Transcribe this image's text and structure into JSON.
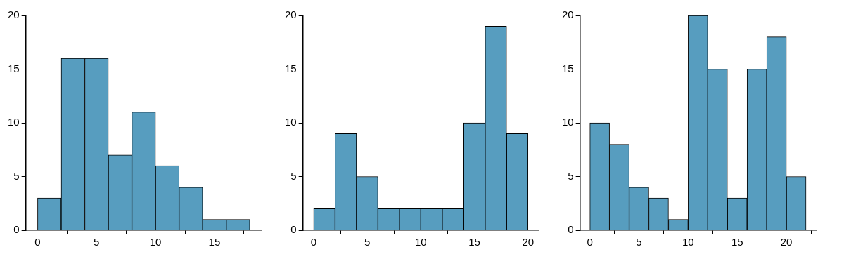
{
  "chart_data": [
    {
      "type": "histogram",
      "bins": [
        0,
        2,
        4,
        6,
        8,
        10,
        12,
        14,
        16,
        18
      ],
      "values": [
        3,
        16,
        16,
        7,
        11,
        6,
        4,
        1,
        1
      ],
      "color": "#579dbf",
      "xlim": [
        -1,
        19
      ],
      "xticks": [
        0,
        5,
        10,
        15
      ],
      "ylim": [
        0,
        20
      ],
      "yticks": [
        0,
        5,
        10,
        15,
        20
      ],
      "grid": false,
      "legend": false
    },
    {
      "type": "histogram",
      "bins": [
        0,
        2,
        4,
        6,
        8,
        10,
        12,
        14,
        16,
        18,
        20
      ],
      "values": [
        2,
        9,
        5,
        2,
        2,
        2,
        2,
        10,
        19,
        9
      ],
      "color": "#579dbf",
      "xlim": [
        -1,
        21
      ],
      "xticks": [
        0,
        5,
        10,
        15,
        20
      ],
      "ylim": [
        0,
        20
      ],
      "yticks": [
        0,
        5,
        10,
        15,
        20
      ],
      "grid": false,
      "legend": false
    },
    {
      "type": "histogram",
      "bins": [
        0,
        2,
        4,
        6,
        8,
        10,
        12,
        14,
        16,
        18,
        20,
        22
      ],
      "values": [
        10,
        8,
        4,
        3,
        1,
        20,
        15,
        3,
        15,
        18,
        5
      ],
      "color": "#579dbf",
      "xlim": [
        -1,
        23
      ],
      "xticks": [
        0,
        5,
        10,
        15,
        20
      ],
      "ylim": [
        0,
        20
      ],
      "yticks": [
        0,
        5,
        10,
        15,
        20
      ],
      "grid": false,
      "legend": false
    }
  ]
}
